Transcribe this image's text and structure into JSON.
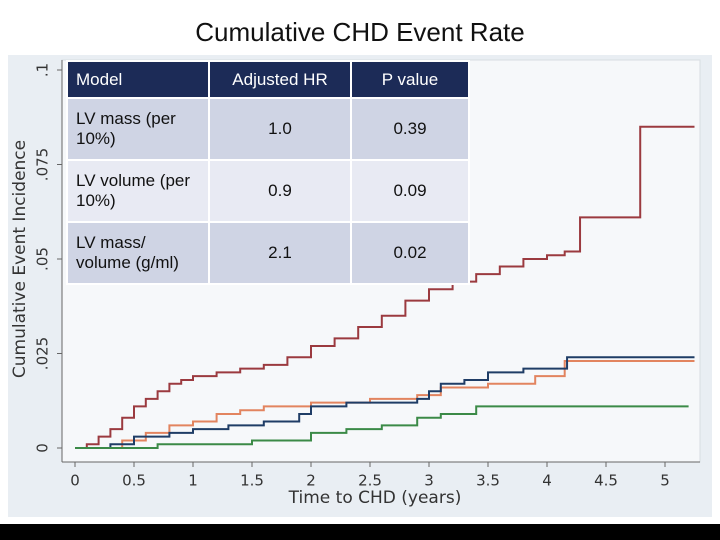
{
  "chart_data": {
    "type": "step",
    "title": "Cumulative CHD Event Rate",
    "x_label": "Time to CHD (years)",
    "y_label": "Cumulative Event Incidence",
    "xlim": [
      0,
      5.3
    ],
    "ylim": [
      0,
      0.1
    ],
    "xticks": [
      0,
      0.5,
      1,
      1.5,
      2,
      2.5,
      3,
      3.5,
      4,
      4.5,
      5
    ],
    "yticks": [
      0,
      {
        "value": 0.025,
        "label": ".025"
      },
      {
        "value": 0.05,
        "label": ".05"
      },
      {
        "value": 0.075,
        "label": ".075"
      },
      {
        "value": 0.1,
        "label": ".1"
      }
    ],
    "series": [
      {
        "color": "#9b3a3f",
        "x": [
          0,
          0.1,
          0.2,
          0.3,
          0.4,
          0.5,
          0.6,
          0.7,
          0.8,
          0.9,
          1.0,
          1.2,
          1.4,
          1.6,
          1.8,
          2.0,
          2.2,
          2.4,
          2.6,
          2.8,
          3.0,
          3.2,
          3.4,
          3.6,
          3.8,
          4.0,
          4.15,
          4.28,
          4.79,
          5.25
        ],
        "values": [
          0,
          0.001,
          0.003,
          0.005,
          0.008,
          0.011,
          0.013,
          0.015,
          0.017,
          0.018,
          0.019,
          0.02,
          0.021,
          0.022,
          0.024,
          0.027,
          0.029,
          0.032,
          0.035,
          0.039,
          0.042,
          0.044,
          0.046,
          0.048,
          0.05,
          0.051,
          0.052,
          0.061,
          0.085,
          0.085
        ]
      },
      {
        "color": "#e2845f",
        "x": [
          0,
          0.4,
          0.6,
          0.8,
          1.0,
          1.2,
          1.4,
          1.6,
          2.0,
          2.5,
          2.9,
          3.1,
          3.5,
          3.9,
          4.15,
          5.25
        ],
        "values": [
          0,
          0.002,
          0.004,
          0.006,
          0.007,
          0.009,
          0.01,
          0.011,
          0.012,
          0.013,
          0.014,
          0.016,
          0.017,
          0.019,
          0.023,
          0.023
        ]
      },
      {
        "color": "#1f3d66",
        "x": [
          0,
          0.3,
          0.5,
          0.8,
          1.0,
          1.3,
          1.6,
          1.9,
          2.0,
          2.3,
          2.6,
          2.9,
          3.0,
          3.1,
          3.3,
          3.5,
          3.8,
          4.17,
          5.25
        ],
        "values": [
          0,
          0.001,
          0.003,
          0.004,
          0.005,
          0.006,
          0.007,
          0.009,
          0.011,
          0.012,
          0.012,
          0.013,
          0.015,
          0.017,
          0.018,
          0.02,
          0.021,
          0.024,
          0.024
        ]
      },
      {
        "color": "#3b8a47",
        "x": [
          0,
          0.7,
          1.0,
          1.5,
          2.0,
          2.3,
          2.6,
          2.9,
          3.1,
          3.4,
          5.2
        ],
        "values": [
          0,
          0.001,
          0.001,
          0.002,
          0.004,
          0.005,
          0.006,
          0.008,
          0.009,
          0.011,
          0.011
        ]
      }
    ]
  },
  "table": {
    "header": [
      "Model",
      "Adjusted HR",
      "P value"
    ],
    "rows": [
      [
        "LV mass (per 10%)",
        "1.0",
        "0.39"
      ],
      [
        "LV volume (per 10%)",
        "0.9",
        "0.09"
      ],
      [
        "LV mass/ volume (g/ml)",
        "2.1",
        "0.02"
      ]
    ]
  }
}
